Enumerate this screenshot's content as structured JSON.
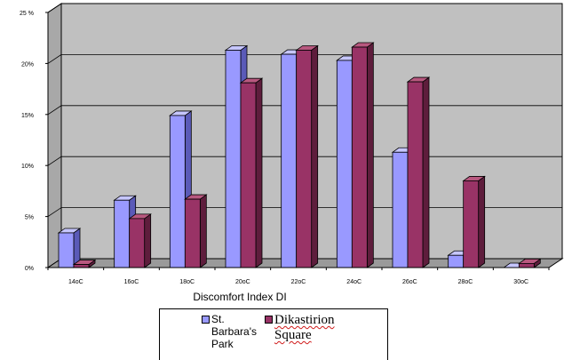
{
  "chart_data": {
    "type": "bar",
    "xlabel": "Discomfort Index DI",
    "ylabel": "",
    "ylim": [
      0,
      25
    ],
    "yticks": [
      "0%",
      "5%",
      "10%",
      "15%",
      "20%",
      "25 %"
    ],
    "categories": [
      "14oC",
      "16oC",
      "18oC",
      "20oC",
      "22oC",
      "24oC",
      "26oC",
      "28oC",
      "30oC"
    ],
    "series": [
      {
        "name": "St. Barbara's Park",
        "values": [
          3.4,
          6.6,
          14.9,
          21.3,
          20.9,
          20.3,
          11.3,
          1.2,
          0.0
        ]
      },
      {
        "name": "Dikastirion Square",
        "values": [
          0.3,
          4.8,
          6.7,
          18.1,
          21.3,
          21.6,
          18.2,
          8.5,
          0.4
        ]
      }
    ],
    "colors": {
      "series1": "#9999ff",
      "series1_side": "#5a5ab8",
      "series1_top": "#c6c6ff",
      "series2": "#993366",
      "series2_side": "#5e1d3c",
      "series2_top": "#b8587f",
      "wall": "#c0c0c0",
      "floor": "#9a9a9a"
    },
    "grid": true,
    "legend": "bottom"
  }
}
